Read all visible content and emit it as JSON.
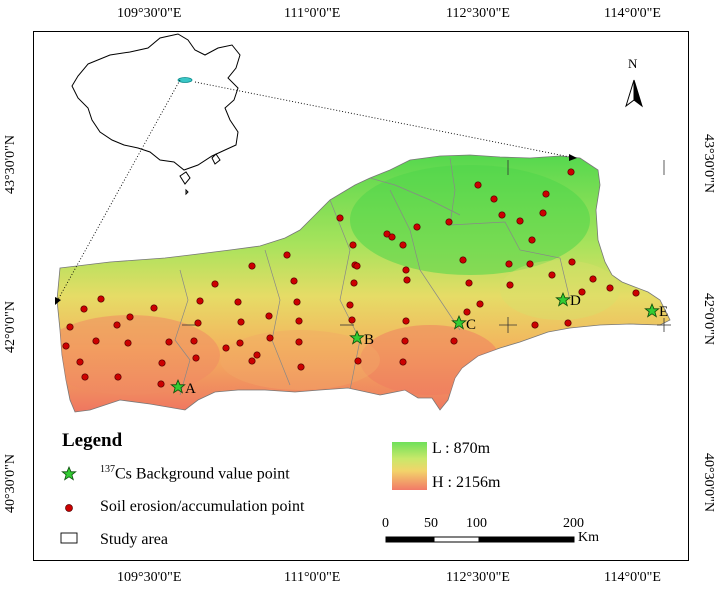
{
  "axes": {
    "top_labels": [
      "109°30'0\"E",
      "111°0'0\"E",
      "112°30'0\"E",
      "114°0'0\"E"
    ],
    "bottom_labels": [
      "109°30'0\"E",
      "111°0'0\"E",
      "112°30'0\"E",
      "114°0'0\"E"
    ],
    "left_labels": [
      "43°30'0\"N",
      "42°0'0\"N",
      "40°30'0\"N"
    ],
    "right_labels": [
      "43°30'0\"N",
      "42°0'0\"N",
      "40°30'0\"N"
    ]
  },
  "north_arrow": {
    "label": "N"
  },
  "background_points": [
    "A",
    "B",
    "C",
    "D",
    "E"
  ],
  "legend": {
    "title": "Legend",
    "items": [
      {
        "label_sup": "137",
        "label": "Cs Background value point",
        "symbol": "green-star"
      },
      {
        "label": "Soil erosion/accumulation point",
        "symbol": "red-dot"
      },
      {
        "label": "Study area",
        "symbol": "rectangle"
      }
    ]
  },
  "elevation": {
    "low": "L : 870m",
    "high": "H : 2156m",
    "low_color": "#6fe05a",
    "high_color": "#f08070"
  },
  "scale_bar": {
    "ticks": [
      "0",
      "50",
      "100",
      "200"
    ],
    "unit": "Km"
  },
  "colors": {
    "star": "#33cc33",
    "dot": "#cc0000",
    "dot_stroke": "#550000"
  }
}
